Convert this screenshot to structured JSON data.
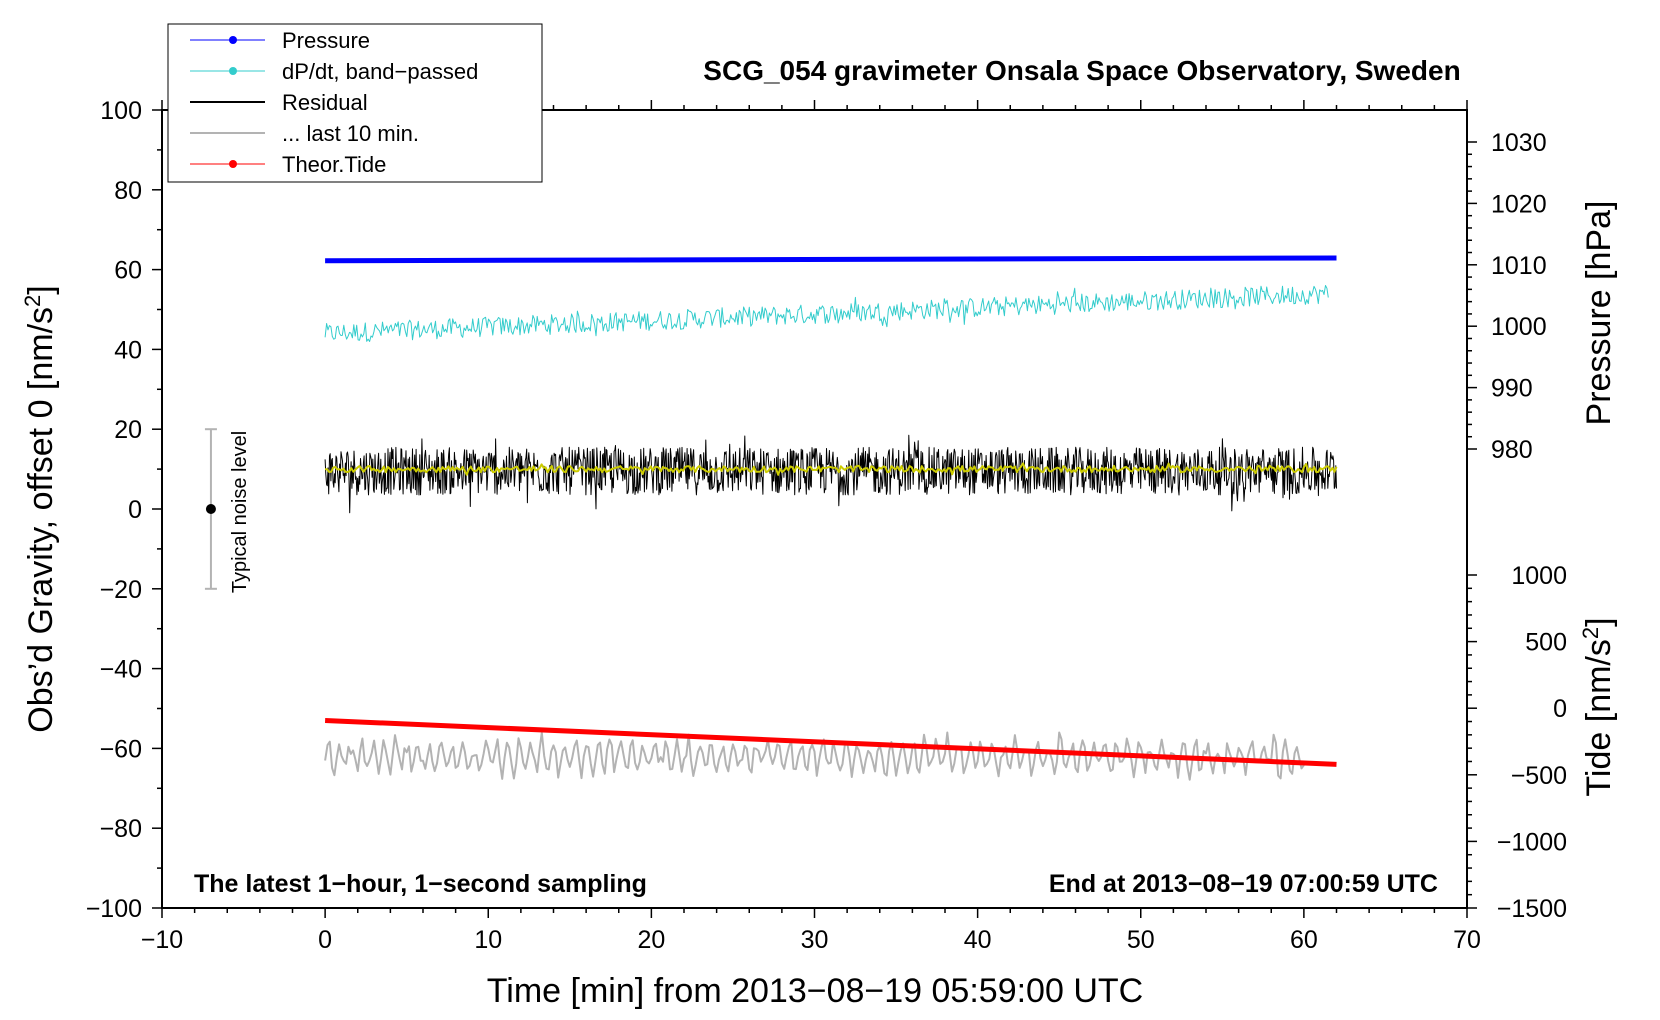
{
  "chart_data": {
    "type": "line",
    "title": "SCG_054 gravimeter Onsala Space Observatory, Sweden",
    "xlabel": "Time [min] from 2013−08−19 05:59:00 UTC",
    "ylabel_prefix": "Obs’d Gravity, offset 0 [nm/s",
    "ylabel_sup": "2",
    "ylabel_suffix": "]",
    "right_ylabel_pressure": "Pressure [hPa]",
    "right_ylabel_tide_prefix": "Tide [nm/s",
    "right_ylabel_tide_sup": "2",
    "right_ylabel_tide_suffix": "]",
    "xlim": [
      -10,
      70
    ],
    "ylim": [
      -100,
      100
    ],
    "pressure_axis_range": [
      1030,
      980
    ],
    "tide_axis_range": [
      -1500,
      1000
    ],
    "x_ticks": [
      -10,
      0,
      10,
      20,
      30,
      40,
      50,
      60,
      70
    ],
    "x_tick_labels": [
      "−10",
      "0",
      "10",
      "20",
      "30",
      "40",
      "50",
      "60",
      "70"
    ],
    "y_ticks": [
      -100,
      -80,
      -60,
      -40,
      -20,
      0,
      20,
      40,
      60,
      80,
      100
    ],
    "y_tick_labels": [
      "−100",
      "−80",
      "−60",
      "−40",
      "−20",
      "0",
      "20",
      "40",
      "60",
      "80",
      "100"
    ],
    "pressure_ticks": [
      980,
      990,
      1000,
      1010,
      1020,
      1030
    ],
    "pressure_tick_labels": [
      "980",
      "990",
      "1000",
      "1010",
      "1020",
      "1030"
    ],
    "tide_ticks": [
      -1500,
      -1000,
      -500,
      0,
      500,
      1000
    ],
    "tide_tick_labels": [
      "−1500",
      "−1000",
      "−500",
      "0",
      "500",
      "1000"
    ],
    "annotation_left": "The latest 1−hour, 1−second sampling",
    "annotation_right": "End at 2013−08−19 07:00:59 UTC",
    "noise_bar": {
      "label": "Typical noise level",
      "x": -7,
      "center": 0,
      "low": -20,
      "high": 20
    },
    "legend": [
      {
        "label": "Pressure",
        "color": "#0000ff",
        "marker": true,
        "width": 1
      },
      {
        "label": "dP/dt, band−passed",
        "color": "#33cccc",
        "marker": true,
        "width": 1
      },
      {
        "label": "Residual",
        "color": "#000000",
        "marker": false,
        "width": 2
      },
      {
        "label": "... last 10 min.",
        "color": "#b3b3b3",
        "marker": false,
        "width": 2
      },
      {
        "label": "Theor.Tide",
        "color": "#ff0000",
        "marker": true,
        "width": 1
      }
    ],
    "series": [
      {
        "name": "Pressure",
        "color": "#0000ff",
        "style": "line",
        "x": [
          0,
          62
        ],
        "y": [
          62.2,
          62.9
        ]
      },
      {
        "name": "dP/dt, band-passed",
        "color": "#33cccc",
        "style": "noise",
        "x_start": 0,
        "x_end": 61.5,
        "y_start": 44,
        "y_end": 54,
        "amplitude": 2.5
      },
      {
        "name": "Residual",
        "color": "#000000",
        "style": "noise",
        "x_start": 0,
        "x_end": 62,
        "y_center": 9.5,
        "amplitude": 6
      },
      {
        "name": "Smoothed residual",
        "color": "#cccc00",
        "style": "noise",
        "x_start": 0,
        "x_end": 62,
        "y_center": 10,
        "amplitude": 0.8
      },
      {
        "name": "... last 10 min.",
        "color": "#b3b3b3",
        "style": "wave",
        "x_start": 0,
        "x_end": 60,
        "y_center": -62,
        "amplitude": 4
      },
      {
        "name": "Theor.Tide",
        "color": "#ff0000",
        "style": "line",
        "x": [
          0,
          62
        ],
        "y": [
          -53,
          -64
        ]
      }
    ]
  }
}
